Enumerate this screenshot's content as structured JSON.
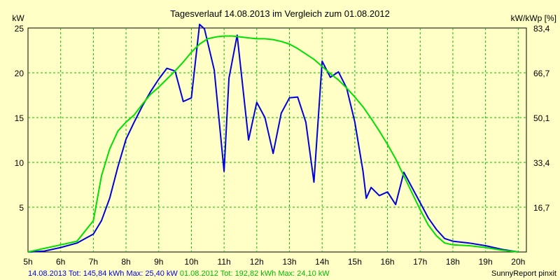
{
  "chart_data": {
    "type": "line",
    "title": "Tagesverlauf 14.08.2013 im Vergleich zum 01.08.2012",
    "ylabel_left": "kW",
    "ylabel_right": "kW/kWp [%]",
    "x_ticks": [
      "5h",
      "6h",
      "7h",
      "8h",
      "9h",
      "10h",
      "11h",
      "12h",
      "13h",
      "14h",
      "15h",
      "16h",
      "17h",
      "18h",
      "19h",
      "20h"
    ],
    "y_ticks_left": [
      "5",
      "10",
      "15",
      "20",
      "25"
    ],
    "y_ticks_right": [
      "16,7",
      "33,4",
      "50,1",
      "66,7",
      "83,4"
    ],
    "xlim": [
      5,
      20.25
    ],
    "ylim": [
      0,
      25
    ],
    "grid": true,
    "series": [
      {
        "name": "14.08.2013",
        "color": "#0000dd",
        "x": [
          5.0,
          5.5,
          6.0,
          6.5,
          6.75,
          7.0,
          7.25,
          7.5,
          7.75,
          8.0,
          8.25,
          8.5,
          8.75,
          9.0,
          9.25,
          9.5,
          9.75,
          10.0,
          10.25,
          10.4,
          10.7,
          11.0,
          11.15,
          11.4,
          11.75,
          12.0,
          12.25,
          12.5,
          12.75,
          13.0,
          13.25,
          13.5,
          13.75,
          14.0,
          14.25,
          14.5,
          14.75,
          15.0,
          15.25,
          15.35,
          15.5,
          15.75,
          16.0,
          16.25,
          16.5,
          16.75,
          17.0,
          17.25,
          17.5,
          17.75,
          18.0,
          18.5,
          19.0,
          19.5,
          20.0
        ],
        "y": [
          0.0,
          0.1,
          0.5,
          1.0,
          1.5,
          2.0,
          3.5,
          6.0,
          9.5,
          12.6,
          14.5,
          16.3,
          17.9,
          19.3,
          20.5,
          20.2,
          16.8,
          17.2,
          25.4,
          24.9,
          20.3,
          9.0,
          19.4,
          24.2,
          12.5,
          16.7,
          15.0,
          11.0,
          15.5,
          17.2,
          17.3,
          14.5,
          7.8,
          21.3,
          19.5,
          20.1,
          18.3,
          14.5,
          9.0,
          6.0,
          7.2,
          6.3,
          6.7,
          5.3,
          8.9,
          7.2,
          5.5,
          3.8,
          2.5,
          1.5,
          1.2,
          1.0,
          0.7,
          0.3,
          0.0
        ]
      },
      {
        "name": "01.08.2012",
        "color": "#00e000",
        "x": [
          5.0,
          5.5,
          6.0,
          6.5,
          7.0,
          7.25,
          7.5,
          7.75,
          8.0,
          8.25,
          8.5,
          8.75,
          9.0,
          9.25,
          9.5,
          9.75,
          10.0,
          10.25,
          10.5,
          10.75,
          11.0,
          11.25,
          11.5,
          11.75,
          12.0,
          12.25,
          12.5,
          12.75,
          13.0,
          13.25,
          13.5,
          13.75,
          14.0,
          14.25,
          14.5,
          14.75,
          15.0,
          15.25,
          15.5,
          15.75,
          16.0,
          16.25,
          16.5,
          16.75,
          17.0,
          17.25,
          17.5,
          17.75,
          18.0,
          18.5,
          19.0,
          19.5,
          20.0
        ],
        "y": [
          0.0,
          0.4,
          0.8,
          1.2,
          3.5,
          8.5,
          11.5,
          13.5,
          14.5,
          15.3,
          16.5,
          17.6,
          18.4,
          19.3,
          20.2,
          21.2,
          22.3,
          23.2,
          23.8,
          24.0,
          24.1,
          24.1,
          24.0,
          23.9,
          23.8,
          23.8,
          23.7,
          23.5,
          23.2,
          22.7,
          22.1,
          21.5,
          20.7,
          19.9,
          19.2,
          18.3,
          17.3,
          16.2,
          14.9,
          13.5,
          12.0,
          10.4,
          8.5,
          6.6,
          4.7,
          3.0,
          1.8,
          1.0,
          0.8,
          0.7,
          0.5,
          0.2,
          0.0
        ]
      }
    ],
    "footer_left": [
      {
        "text": "14.08.2013 Tot: 145,84 kWh Max: 25,40 kW",
        "color": "#0000dd"
      },
      {
        "text": " 01.08.2012 Tot: 192,82 kWh Max: 24,10 kW",
        "color": "#00b800"
      }
    ],
    "footer_right": "SunnyReport pinxit"
  }
}
